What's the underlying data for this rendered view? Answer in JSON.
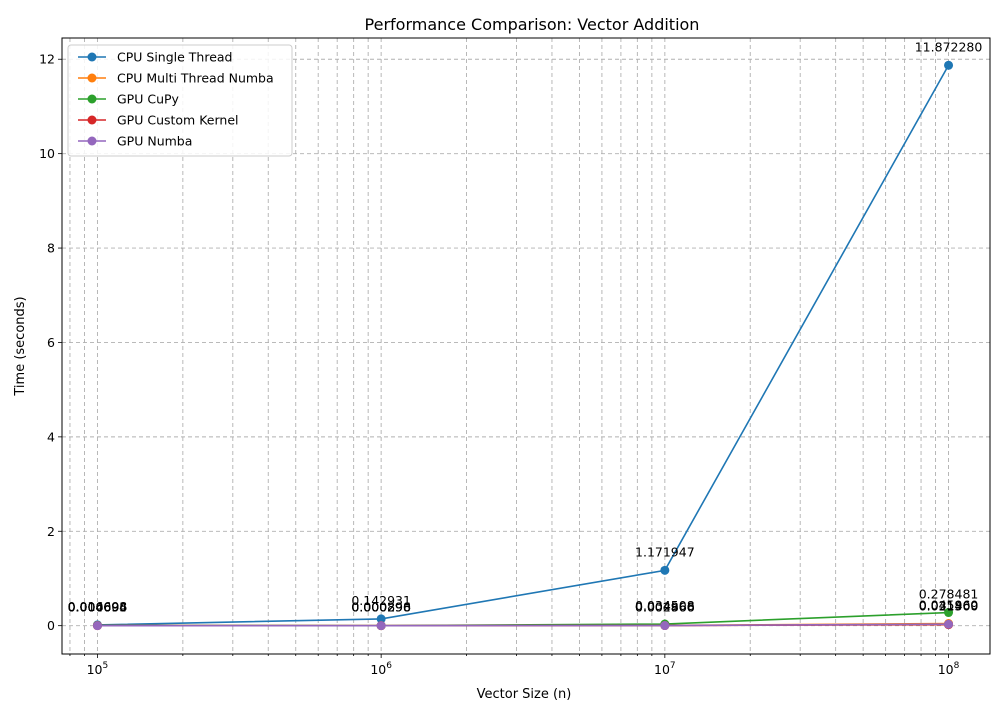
{
  "chart_data": {
    "type": "line",
    "title": "Performance Comparison: Vector Addition",
    "xlabel": "Vector Size (n)",
    "ylabel": "Time (seconds)",
    "x_scale": "log",
    "x": [
      100000,
      1000000,
      10000000,
      100000000
    ],
    "x_tick_labels": [
      {
        "base": "10",
        "exp": "5"
      },
      {
        "base": "10",
        "exp": "6"
      },
      {
        "base": "10",
        "exp": "7"
      },
      {
        "base": "10",
        "exp": "8"
      }
    ],
    "xlim": [
      75000,
      140000000
    ],
    "ylim": [
      -0.6,
      12.45
    ],
    "y_ticks": [
      0,
      2,
      4,
      6,
      8,
      10,
      12
    ],
    "y_tick_labels": [
      "0",
      "2",
      "4",
      "6",
      "8",
      "10",
      "12"
    ],
    "grid": true,
    "legend_placement": "upper-left",
    "series": [
      {
        "name": "CPU Single Thread",
        "color": "#1f77b4",
        "values": [
          0.016698,
          0.142931,
          1.171947,
          11.87228
        ],
        "labels": [
          "0.016698",
          "0.142931",
          "1.171947",
          "11.872280"
        ]
      },
      {
        "name": "CPU Multi Thread Numba",
        "color": "#ff7f0e",
        "values": [
          0.004694,
          0.00089,
          0.00496,
          0.04596
        ],
        "labels": [
          "0.004694",
          "0.000890",
          "0.004960",
          "0.045960"
        ]
      },
      {
        "name": "GPU CuPy",
        "color": "#2ca02c",
        "values": [
          0.004095,
          0.000298,
          0.034508,
          0.278481
        ],
        "labels": [
          "0.004095",
          "0.000298",
          "0.034508",
          "0.278481"
        ]
      },
      {
        "name": "GPU Custom Kernel",
        "color": "#d62728",
        "values": [
          0.000606,
          0.000296,
          0.002866,
          0.0215
        ],
        "labels": [
          "0.000606",
          "0.000296",
          "0.002866",
          "0.021500"
        ]
      },
      {
        "name": "GPU Numba",
        "color": "#9467bd",
        "values": [
          0.000694,
          0.000296,
          0.002866,
          0.031469
        ],
        "labels": [
          "0.000694",
          "0.000296",
          "0.002866",
          "0.031469"
        ]
      }
    ]
  }
}
